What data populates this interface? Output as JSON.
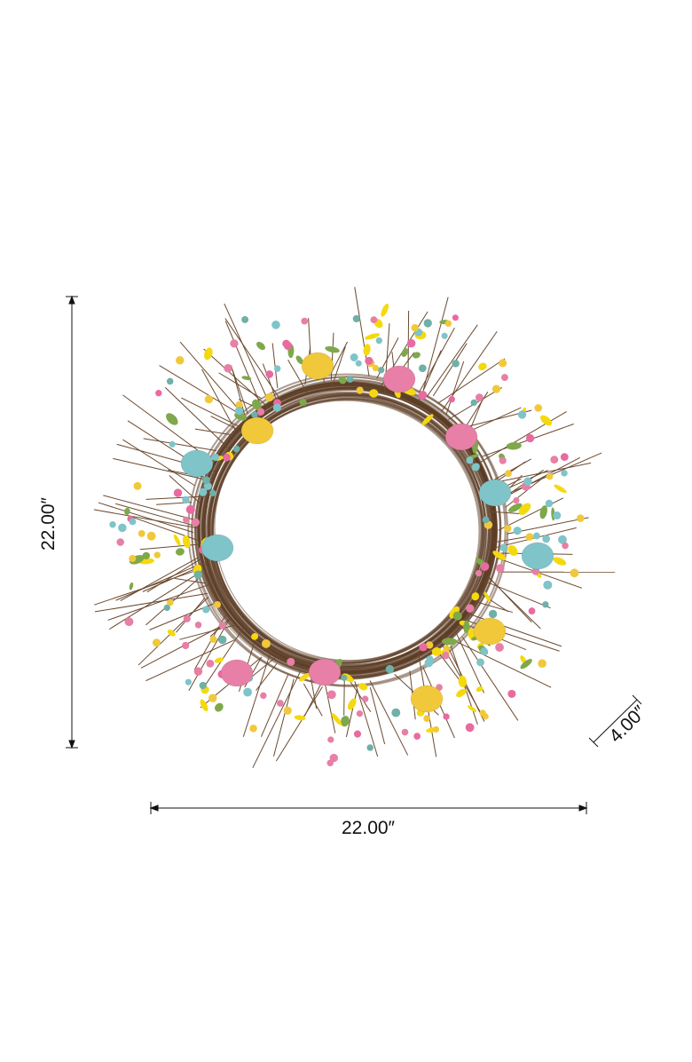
{
  "product": {
    "image": "easter-egg-wreath-photo",
    "colors": {
      "vine": "#5a3a22",
      "pink_egg": "#e77fa6",
      "blue_egg": "#7fc4c8",
      "yellow_egg": "#f0c83a",
      "flower": "#f5d90f",
      "leaf": "#7fa84a"
    }
  },
  "dimensions": {
    "height_label": "22.00″",
    "width_label": "22.00″",
    "depth_label": "4.00″"
  }
}
